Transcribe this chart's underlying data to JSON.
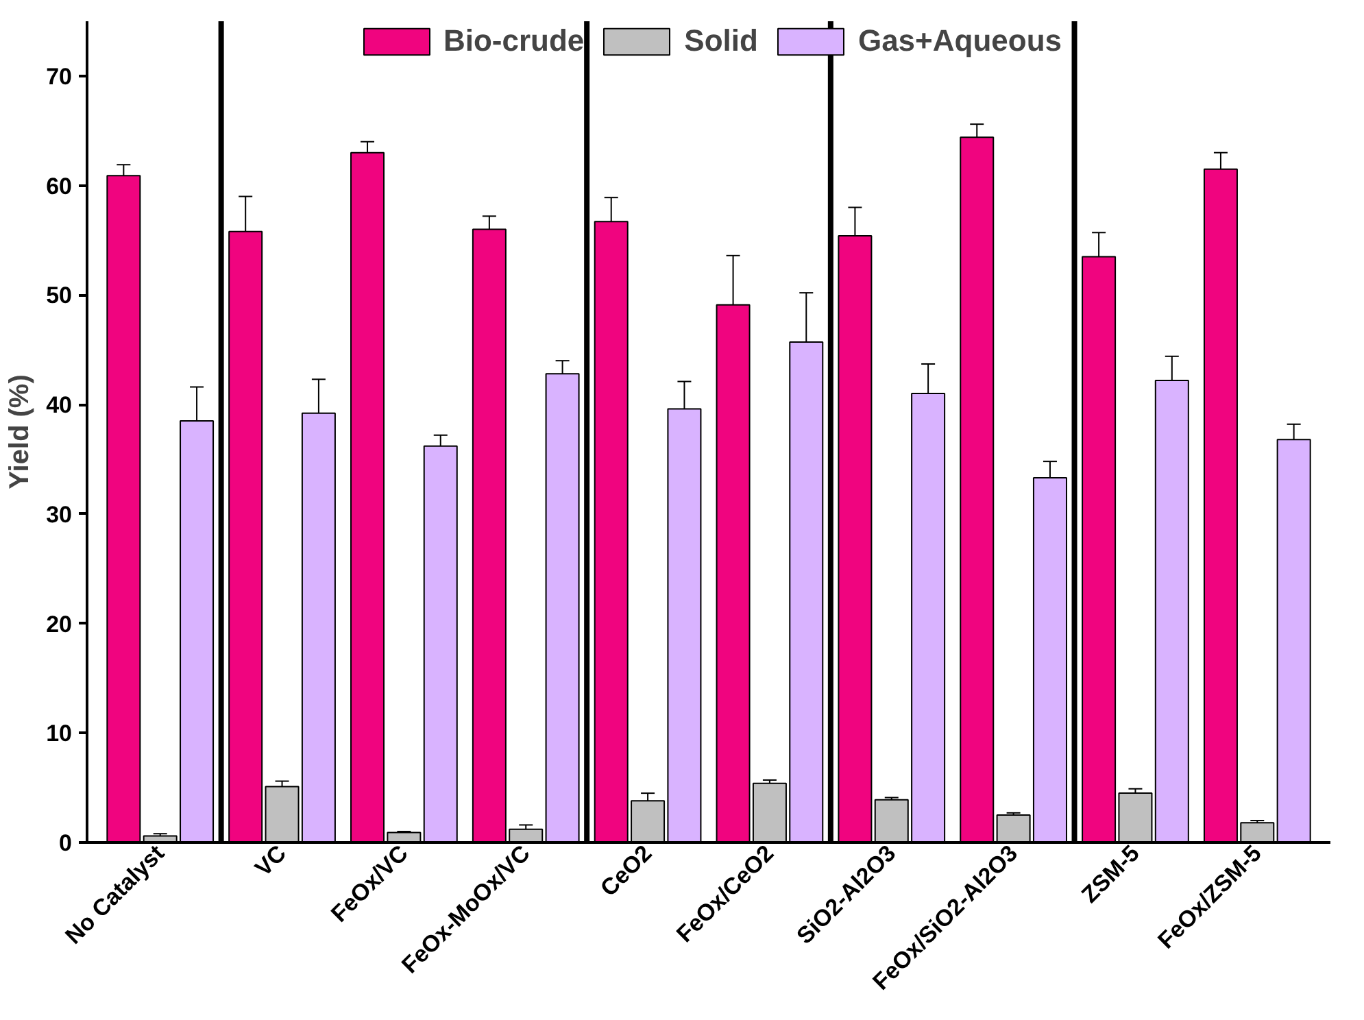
{
  "chart_data": {
    "type": "bar",
    "ylabel": "Yield (%)",
    "categories": [
      "No Catalyst",
      "VC",
      "FeOx/VC",
      "FeOx-MoOx/VC",
      "CeO2",
      "FeOx/CeO2",
      "SiO2-Al2O3",
      "FeOx/SiO2-Al2O3",
      "ZSM-5",
      "FeOx/ZSM-5"
    ],
    "series": [
      {
        "name": "Bio-crude",
        "color": "#f0047f",
        "values": [
          60.9,
          55.8,
          63.0,
          56.0,
          56.7,
          49.1,
          55.4,
          64.4,
          53.5,
          61.5
        ],
        "errors": [
          1.0,
          3.2,
          1.0,
          1.2,
          2.2,
          4.5,
          2.6,
          1.2,
          2.2,
          1.5
        ]
      },
      {
        "name": "Solid",
        "color": "#c0c0c0",
        "values": [
          0.6,
          5.1,
          0.9,
          1.2,
          3.8,
          5.4,
          3.9,
          2.5,
          4.5,
          1.8
        ],
        "errors": [
          0.2,
          0.5,
          0.1,
          0.4,
          0.7,
          0.3,
          0.2,
          0.2,
          0.4,
          0.2
        ]
      },
      {
        "name": "Gas+Aqueous",
        "color": "#d9b3ff",
        "values": [
          38.5,
          39.2,
          36.2,
          42.8,
          39.6,
          45.7,
          41.0,
          33.3,
          42.2,
          36.8
        ],
        "errors": [
          3.1,
          3.1,
          1.0,
          1.2,
          2.5,
          4.5,
          2.7,
          1.5,
          2.2,
          1.4
        ]
      }
    ],
    "ylim": [
      0,
      75
    ],
    "yticks": [
      0,
      10,
      20,
      30,
      40,
      50,
      60,
      70
    ],
    "grid": false,
    "legend": "top"
  }
}
